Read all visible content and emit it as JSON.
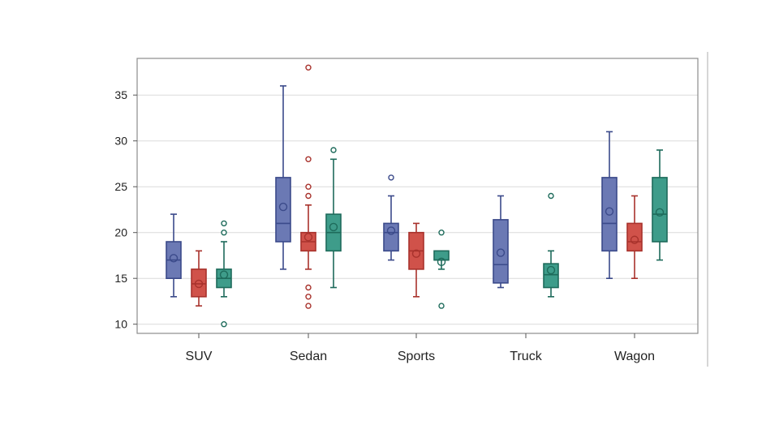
{
  "chart_data": {
    "type": "box",
    "title": "",
    "xlabel": "",
    "ylabel": "",
    "ylim": [
      9,
      39
    ],
    "yticks": [
      10,
      15,
      20,
      25,
      30,
      35
    ],
    "grid": true,
    "legend": "none",
    "categories": [
      "SUV",
      "Sedan",
      "Sports",
      "Truck",
      "Wagon"
    ],
    "series": [
      {
        "name": "series-1",
        "color": "#6b79b4",
        "edge": "#3b4a8a",
        "boxes": [
          {
            "category": "SUV",
            "min": 13,
            "q1": 15,
            "median": 17,
            "q3": 19,
            "max": 22,
            "mean": 17.2,
            "outliers": []
          },
          {
            "category": "Sedan",
            "min": 16,
            "q1": 19,
            "median": 21,
            "q3": 26,
            "max": 36,
            "mean": 22.8,
            "outliers": []
          },
          {
            "category": "Sports",
            "min": 17,
            "q1": 18,
            "median": 20,
            "q3": 21,
            "max": 24,
            "mean": 20.2,
            "outliers": [
              26
            ]
          },
          {
            "category": "Truck",
            "min": 14,
            "q1": 14.5,
            "median": 16.5,
            "q3": 21.4,
            "max": 24,
            "mean": 17.8,
            "outliers": []
          },
          {
            "category": "Wagon",
            "min": 15,
            "q1": 18,
            "median": 21,
            "q3": 26,
            "max": 31,
            "mean": 22.3,
            "outliers": []
          }
        ]
      },
      {
        "name": "series-2",
        "color": "#d0524a",
        "edge": "#a8322c",
        "boxes": [
          {
            "category": "SUV",
            "min": 12,
            "q1": 13,
            "median": 14.4,
            "q3": 16,
            "max": 18,
            "mean": 14.4,
            "outliers": []
          },
          {
            "category": "Sedan",
            "min": 16,
            "q1": 18,
            "median": 19,
            "q3": 20,
            "max": 23,
            "mean": 19.5,
            "outliers": [
              38,
              28,
              25,
              24,
              14,
              13,
              12
            ]
          },
          {
            "category": "Sports",
            "min": 13,
            "q1": 16,
            "median": 18,
            "q3": 20,
            "max": 21,
            "mean": 17.7,
            "outliers": []
          },
          {
            "category": "Wagon",
            "min": 15,
            "q1": 18,
            "median": 19,
            "q3": 21,
            "max": 24,
            "mean": 19.2,
            "outliers": []
          }
        ]
      },
      {
        "name": "series-3",
        "color": "#3e9c8a",
        "edge": "#1e6b5b",
        "boxes": [
          {
            "category": "SUV",
            "min": 13,
            "q1": 14,
            "median": 15,
            "q3": 16,
            "max": 19,
            "mean": 15.4,
            "outliers": [
              21,
              20,
              10
            ]
          },
          {
            "category": "Sedan",
            "min": 14,
            "q1": 18,
            "median": 20,
            "q3": 22,
            "max": 28,
            "mean": 20.6,
            "outliers": [
              29
            ]
          },
          {
            "category": "Sports",
            "min": 16,
            "q1": 17,
            "median": 17,
            "q3": 18,
            "max": 18,
            "mean": 16.8,
            "outliers": [
              20,
              12
            ]
          },
          {
            "category": "Truck",
            "min": 13,
            "q1": 14,
            "median": 15.4,
            "q3": 16.6,
            "max": 18,
            "mean": 15.9,
            "outliers": [
              24
            ]
          },
          {
            "category": "Wagon",
            "min": 17,
            "q1": 19,
            "median": 22,
            "q3": 26,
            "max": 29,
            "mean": 22.2,
            "outliers": []
          }
        ]
      }
    ]
  }
}
